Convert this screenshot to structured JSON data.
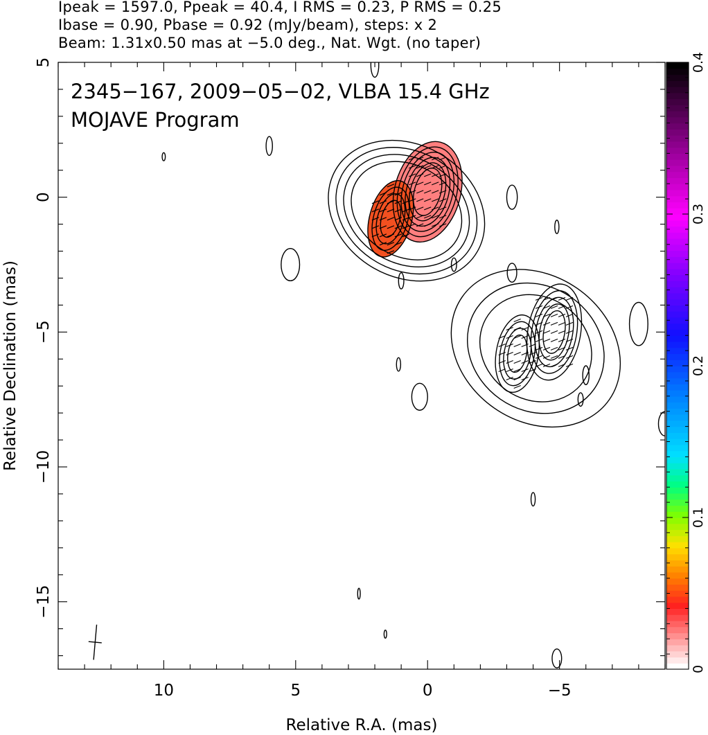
{
  "header": {
    "line1": "Ipeak = 1597.0, Ppeak = 40.4, I RMS = 0.23, P RMS = 0.25",
    "line2": "Ibase = 0.90, Pbase = 0.92 (mJy/beam), steps: x 2",
    "line3": "Beam: 1.31x0.50 mas at −5.0 deg., Nat. Wgt. (no taper)"
  },
  "chart_data": {
    "type": "contour",
    "title": "2345−167, 2009−05−02, VLBA 15.4 GHz",
    "subtitle": "MOJAVE Program",
    "xlabel": "Relative R.A. (mas)",
    "ylabel": "Relative Declination (mas)",
    "xlim": [
      14,
      -9
    ],
    "ylim": [
      -17.5,
      5
    ],
    "x_ticks": [
      10,
      5,
      0,
      -5
    ],
    "x_tick_labels": [
      "10",
      "5",
      "0",
      "−5"
    ],
    "y_ticks": [
      5,
      0,
      -5,
      -10,
      -15
    ],
    "y_tick_labels": [
      "5",
      "0",
      "−5",
      "−10",
      "−15"
    ],
    "colorbar": {
      "range": [
        0,
        0.4
      ],
      "ticks": [
        0,
        0.1,
        0.2,
        0.3,
        0.4
      ],
      "tick_labels": [
        "0",
        "0.1",
        "0.2",
        "0.3",
        "0.4"
      ]
    },
    "components": [
      {
        "id": "core",
        "ra": 0.0,
        "dec": 0.2,
        "angle_deg": 15,
        "rings": [
          [
            0.5,
            0.9
          ],
          [
            0.65,
            1.1
          ],
          [
            0.8,
            1.3
          ],
          [
            0.95,
            1.5
          ],
          [
            1.1,
            1.7
          ],
          [
            1.25,
            1.9
          ]
        ],
        "frac_fill": "#ff7f7f"
      },
      {
        "id": "knot",
        "ra": 1.4,
        "dec": -0.8,
        "angle_deg": 15,
        "rings": [
          [
            0.35,
            0.7
          ],
          [
            0.5,
            0.95
          ],
          [
            0.65,
            1.2
          ],
          [
            0.8,
            1.45
          ]
        ],
        "frac_fill": "#f25020"
      },
      {
        "id": "outer-jet",
        "ra": 0.8,
        "dec": -0.5,
        "angle_deg": 30,
        "rings": [
          [
            2.2,
            1.7
          ],
          [
            2.5,
            1.95
          ],
          [
            2.8,
            2.2
          ],
          [
            3.1,
            2.45
          ]
        ]
      },
      {
        "id": "sw-comp-a",
        "ra": -4.8,
        "dec": -5.0,
        "angle_deg": 10,
        "rings": [
          [
            0.4,
            0.8
          ],
          [
            0.55,
            1.05
          ],
          [
            0.7,
            1.3
          ],
          [
            0.85,
            1.55
          ],
          [
            1.0,
            1.8
          ]
        ]
      },
      {
        "id": "sw-comp-b",
        "ra": -3.4,
        "dec": -5.8,
        "angle_deg": 10,
        "rings": [
          [
            0.35,
            0.7
          ],
          [
            0.5,
            0.95
          ],
          [
            0.65,
            1.2
          ],
          [
            0.8,
            1.45
          ]
        ]
      },
      {
        "id": "sw-envelope",
        "ra": -4.1,
        "dec": -5.6,
        "angle_deg": 35,
        "rings": [
          [
            2.2,
            1.9
          ],
          [
            2.7,
            2.3
          ],
          [
            3.4,
            2.7
          ]
        ]
      }
    ],
    "noise_blobs": [
      {
        "ra": -3.2,
        "dec": 0.0,
        "w": 0.2,
        "h": 0.45
      },
      {
        "ra": -4.9,
        "dec": -1.1,
        "w": 0.08,
        "h": 0.25
      },
      {
        "ra": -3.2,
        "dec": -2.8,
        "w": 0.18,
        "h": 0.35
      },
      {
        "ra": -8.0,
        "dec": -4.7,
        "w": 0.35,
        "h": 0.8
      },
      {
        "ra": -6.0,
        "dec": -6.6,
        "w": 0.12,
        "h": 0.35
      },
      {
        "ra": -5.8,
        "dec": -7.5,
        "w": 0.1,
        "h": 0.25
      },
      {
        "ra": -4.0,
        "dec": -11.2,
        "w": 0.08,
        "h": 0.25
      },
      {
        "ra": -4.9,
        "dec": -17.1,
        "w": 0.18,
        "h": 0.35
      },
      {
        "ra": 5.2,
        "dec": -2.5,
        "w": 0.35,
        "h": 0.6
      },
      {
        "ra": 6.0,
        "dec": 1.9,
        "w": 0.12,
        "h": 0.35
      },
      {
        "ra": 2.0,
        "dec": 4.9,
        "w": 0.15,
        "h": 0.45
      },
      {
        "ra": 10.0,
        "dec": 1.5,
        "w": 0.06,
        "h": 0.15
      },
      {
        "ra": 1.0,
        "dec": -3.1,
        "w": 0.1,
        "h": 0.3
      },
      {
        "ra": -1.0,
        "dec": -2.5,
        "w": 0.1,
        "h": 0.25
      },
      {
        "ra": 1.1,
        "dec": -6.2,
        "w": 0.08,
        "h": 0.25
      },
      {
        "ra": 0.3,
        "dec": -7.4,
        "w": 0.3,
        "h": 0.5
      },
      {
        "ra": -9.0,
        "dec": -8.4,
        "w": 0.25,
        "h": 0.45
      },
      {
        "ra": 2.6,
        "dec": -14.7,
        "w": 0.05,
        "h": 0.2
      },
      {
        "ra": 1.6,
        "dec": -16.2,
        "w": 0.05,
        "h": 0.15
      }
    ],
    "beam": {
      "ra": 12.6,
      "dec": -16.5,
      "major": 1.31,
      "minor": 0.5,
      "pa_deg": -5
    }
  }
}
